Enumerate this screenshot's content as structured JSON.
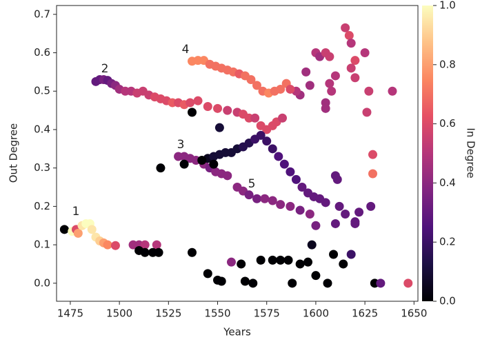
{
  "chart_data": {
    "type": "scatter",
    "x_label": "Years",
    "y_label": "Out Degree",
    "colorbar_label": "In Degree",
    "colormap": "magma",
    "xlim": [
      1468,
      1652
    ],
    "ylim": [
      -0.047,
      0.723
    ],
    "clim": [
      0,
      1
    ],
    "xticks": [
      1475,
      1500,
      1525,
      1550,
      1575,
      1600,
      1625,
      1650
    ],
    "yticks": [
      {
        "value": 0,
        "label": "0.0"
      },
      0.1,
      0.2,
      0.3,
      0.4,
      0.5,
      0.6,
      0.7
    ],
    "cticks": [
      {
        "value": 0,
        "label": "0.0"
      },
      0.2,
      0.4,
      0.6,
      0.8,
      {
        "value": 1,
        "label": "1.0"
      }
    ],
    "annotations": [
      "1",
      "2",
      "3",
      "4",
      "5"
    ],
    "x": [
      1472,
      1476,
      1478,
      1479,
      1481,
      1483,
      1485,
      1486,
      1488,
      1490,
      1492,
      1494,
      1498,
      1507,
      1510,
      1513,
      1519,
      1510,
      1513,
      1517,
      1520,
      1488,
      1490,
      1492,
      1494,
      1496,
      1498,
      1500,
      1503,
      1506,
      1509,
      1512,
      1515,
      1518,
      1521,
      1524,
      1527,
      1530,
      1533,
      1536,
      1540,
      1545,
      1550,
      1555,
      1560,
      1563,
      1566,
      1569,
      1572,
      1575,
      1578,
      1580,
      1583,
      1537,
      1540,
      1543,
      1546,
      1549,
      1552,
      1555,
      1558,
      1561,
      1564,
      1567,
      1570,
      1573,
      1576,
      1579,
      1582,
      1585,
      1530,
      1533,
      1536,
      1539,
      1543,
      1546,
      1549,
      1552,
      1555,
      1560,
      1563,
      1566,
      1570,
      1574,
      1578,
      1582,
      1587,
      1592,
      1597,
      1600,
      1545,
      1548,
      1551,
      1554,
      1557,
      1560,
      1563,
      1566,
      1569,
      1572,
      1575,
      1578,
      1581,
      1584,
      1587,
      1590,
      1593,
      1596,
      1599,
      1602,
      1605,
      1551,
      1537,
      1521,
      1533,
      1542,
      1548,
      1600,
      1602,
      1605,
      1607,
      1607,
      1608,
      1605,
      1605,
      1610,
      1615,
      1617,
      1618,
      1620,
      1618,
      1620,
      1625,
      1627,
      1626,
      1639,
      1629,
      1629,
      1595,
      1597,
      1592,
      1590,
      1587,
      1612,
      1610,
      1611,
      1615,
      1620,
      1622,
      1628,
      1610,
      1620,
      1537,
      1545,
      1550,
      1552,
      1557,
      1562,
      1564,
      1568,
      1572,
      1578,
      1582,
      1586,
      1588,
      1592,
      1596,
      1598,
      1600,
      1606,
      1609,
      1614,
      1618,
      1630,
      1633,
      1647
    ],
    "values": [
      0.14,
      0.135,
      0.14,
      0.13,
      0.15,
      0.155,
      0.155,
      0.14,
      0.12,
      0.11,
      0.105,
      0.1,
      0.098,
      0.1,
      0.1,
      0.1,
      0.1,
      0.085,
      0.08,
      0.08,
      0.08,
      0.525,
      0.53,
      0.53,
      0.528,
      0.52,
      0.515,
      0.505,
      0.5,
      0.5,
      0.495,
      0.5,
      0.49,
      0.485,
      0.48,
      0.475,
      0.47,
      0.47,
      0.465,
      0.47,
      0.475,
      0.46,
      0.455,
      0.45,
      0.445,
      0.44,
      0.43,
      0.43,
      0.41,
      0.4,
      0.41,
      0.42,
      0.43,
      0.578,
      0.58,
      0.58,
      0.57,
      0.565,
      0.56,
      0.555,
      0.55,
      0.545,
      0.54,
      0.53,
      0.515,
      0.5,
      0.495,
      0.5,
      0.505,
      0.52,
      0.33,
      0.33,
      0.325,
      0.32,
      0.31,
      0.3,
      0.29,
      0.285,
      0.28,
      0.25,
      0.24,
      0.23,
      0.22,
      0.22,
      0.215,
      0.205,
      0.2,
      0.19,
      0.18,
      0.15,
      0.325,
      0.33,
      0.335,
      0.34,
      0.34,
      0.35,
      0.355,
      0.365,
      0.375,
      0.385,
      0.37,
      0.35,
      0.33,
      0.31,
      0.29,
      0.27,
      0.25,
      0.235,
      0.225,
      0.22,
      0.21,
      0.405,
      0.445,
      0.3,
      0.31,
      0.32,
      0.31,
      0.6,
      0.59,
      0.6,
      0.59,
      0.52,
      0.5,
      0.47,
      0.455,
      0.54,
      0.665,
      0.645,
      0.625,
      0.58,
      0.56,
      0.535,
      0.6,
      0.5,
      0.445,
      0.5,
      0.335,
      0.285,
      0.55,
      0.515,
      0.49,
      0.5,
      0.505,
      0.2,
      0.28,
      0.27,
      0.18,
      0.16,
      0.185,
      0.2,
      0.155,
      0.155,
      0.08,
      0.025,
      0.008,
      0.005,
      0.055,
      0.05,
      0.005,
      0,
      0.06,
      0.06,
      0.06,
      0.06,
      0,
      0.05,
      0.055,
      0.1,
      0.02,
      0,
      0.075,
      0.05,
      0.075,
      0,
      0,
      0
    ],
    "color_values": [
      0,
      1,
      0.6,
      0.8,
      0.95,
      1,
      1,
      0.95,
      0.95,
      0.9,
      0.8,
      0.75,
      0.6,
      0.45,
      0.45,
      0.5,
      0.5,
      0,
      0,
      0,
      0,
      0.3,
      0.3,
      0.35,
      0.3,
      0.35,
      0.4,
      0.45,
      0.5,
      0.5,
      0.55,
      0.55,
      0.55,
      0.6,
      0.6,
      0.6,
      0.65,
      0.6,
      0.65,
      0.6,
      0.6,
      0.6,
      0.6,
      0.55,
      0.55,
      0.6,
      0.6,
      0.55,
      0.6,
      0.6,
      0.6,
      0.6,
      0.55,
      0.75,
      0.75,
      0.75,
      0.7,
      0.7,
      0.7,
      0.7,
      0.7,
      0.65,
      0.7,
      0.7,
      0.7,
      0.7,
      0.75,
      0.7,
      0.7,
      0.7,
      0.4,
      0.4,
      0.4,
      0.4,
      0.4,
      0.35,
      0.4,
      0.4,
      0.4,
      0.4,
      0.4,
      0.35,
      0.35,
      0.4,
      0.4,
      0.4,
      0.4,
      0.35,
      0.4,
      0.35,
      0.05,
      0.1,
      0.1,
      0.1,
      0.1,
      0.1,
      0.15,
      0.15,
      0.2,
      0.2,
      0.2,
      0.2,
      0.25,
      0.25,
      0.25,
      0.25,
      0.3,
      0.3,
      0.3,
      0.3,
      0.3,
      0.1,
      0,
      0,
      0,
      0,
      0,
      0.5,
      0.45,
      0.55,
      0.55,
      0.5,
      0.5,
      0.45,
      0.45,
      0.5,
      0.55,
      0.6,
      0.5,
      0.6,
      0.55,
      0.55,
      0.5,
      0.55,
      0.55,
      0.5,
      0.6,
      0.7,
      0.45,
      0.45,
      0.45,
      0.5,
      0.6,
      0.3,
      0.3,
      0.3,
      0.3,
      0.3,
      0.3,
      0.3,
      0.3,
      0.3,
      0,
      0,
      0,
      0,
      0.4,
      0,
      0,
      0,
      0,
      0,
      0,
      0,
      0,
      0,
      0,
      0.05,
      0,
      0,
      0,
      0,
      0.2,
      0,
      0.3,
      0.6
    ]
  }
}
